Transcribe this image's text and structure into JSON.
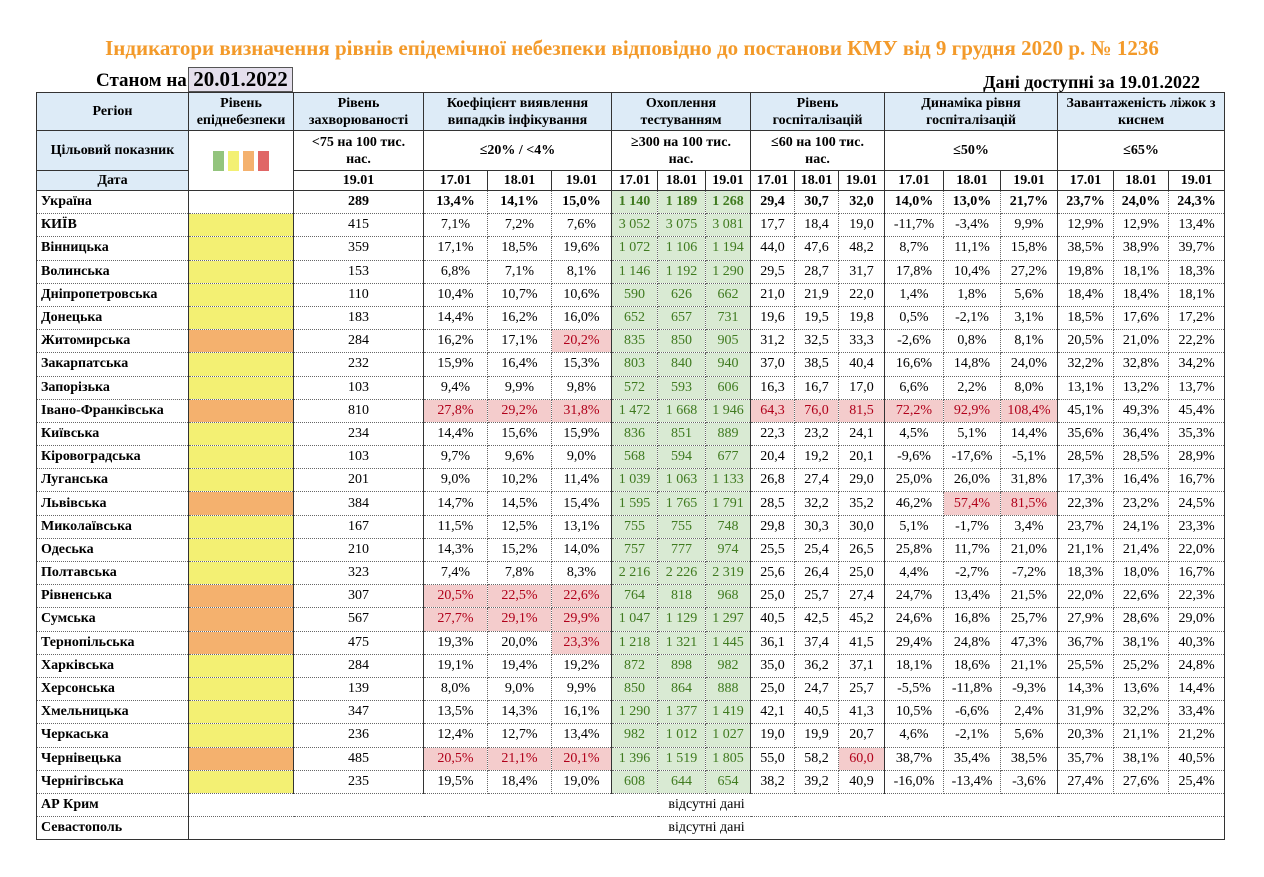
{
  "title": "Індикатори визначення рівнів епідемічної небезпеки відповідно до постанови КМУ від 9 грудня 2020 р. № 1236",
  "as_of_label": "Станом на",
  "as_of_date": "20.01.2022",
  "available_label": "Дані доступні за  19.01.2022",
  "colors": {
    "green": "#93C47D",
    "yellow": "#F3F073",
    "orange": "#F4B16E",
    "red": "#E06666"
  },
  "headers": {
    "region": "Регіон",
    "level": "Рівень епіднебезпеки",
    "incidence": "Рівень захворюваності",
    "coef": "Коефіцієнт виявлення випадків інфікування",
    "testing": "Охоплення тестуванням",
    "hosp": "Рівень госпіталізацій",
    "dyn": "Динаміка рівня госпіталізацій",
    "beds": "Завантаженість ліжок з киснем"
  },
  "targets": {
    "label": "Цільовий показник",
    "incidence": "<75 на 100 тис. нас.",
    "coef": "≤20% / <4%",
    "testing": "≥300 на 100 тис. нас.",
    "hosp": "≤60 на 100 тис. нас.",
    "dyn": "≤50%",
    "beds": "≤65%"
  },
  "date_label": "Дата",
  "incidence_date": "19.01",
  "dates": [
    "17.01",
    "18.01",
    "19.01"
  ],
  "rows": [
    {
      "name": "Україна",
      "level": "",
      "inc": "289",
      "coef": [
        "13,4%",
        "14,1%",
        "15,0%"
      ],
      "test": [
        "1 140",
        "1 189",
        "1 268"
      ],
      "hosp": [
        "29,4",
        "30,7",
        "32,0"
      ],
      "dyn": [
        "14,0%",
        "13,0%",
        "21,7%"
      ],
      "beds": [
        "23,7%",
        "24,0%",
        "24,3%"
      ]
    },
    {
      "name": "КИЇВ",
      "level": "yellow",
      "inc": "415",
      "coef": [
        "7,1%",
        "7,2%",
        "7,6%"
      ],
      "test": [
        "3 052",
        "3 075",
        "3 081"
      ],
      "hosp": [
        "17,7",
        "18,4",
        "19,0"
      ],
      "dyn": [
        "-11,7%",
        "-3,4%",
        "9,9%"
      ],
      "beds": [
        "12,9%",
        "12,9%",
        "13,4%"
      ]
    },
    {
      "name": "Вінницька",
      "level": "yellow",
      "inc": "359",
      "coef": [
        "17,1%",
        "18,5%",
        "19,6%"
      ],
      "test": [
        "1 072",
        "1 106",
        "1 194"
      ],
      "hosp": [
        "44,0",
        "47,6",
        "48,2"
      ],
      "dyn": [
        "8,7%",
        "11,1%",
        "15,8%"
      ],
      "beds": [
        "38,5%",
        "38,9%",
        "39,7%"
      ]
    },
    {
      "name": "Волинська",
      "level": "yellow",
      "inc": "153",
      "coef": [
        "6,8%",
        "7,1%",
        "8,1%"
      ],
      "test": [
        "1 146",
        "1 192",
        "1 290"
      ],
      "hosp": [
        "29,5",
        "28,7",
        "31,7"
      ],
      "dyn": [
        "17,8%",
        "10,4%",
        "27,2%"
      ],
      "beds": [
        "19,8%",
        "18,1%",
        "18,3%"
      ]
    },
    {
      "name": "Дніпропетровська",
      "level": "yellow",
      "inc": "110",
      "coef": [
        "10,4%",
        "10,7%",
        "10,6%"
      ],
      "test": [
        "590",
        "626",
        "662"
      ],
      "hosp": [
        "21,0",
        "21,9",
        "22,0"
      ],
      "dyn": [
        "1,4%",
        "1,8%",
        "5,6%"
      ],
      "beds": [
        "18,4%",
        "18,4%",
        "18,1%"
      ]
    },
    {
      "name": "Донецька",
      "level": "yellow",
      "inc": "183",
      "coef": [
        "14,4%",
        "16,2%",
        "16,0%"
      ],
      "test": [
        "652",
        "657",
        "731"
      ],
      "hosp": [
        "19,6",
        "19,5",
        "19,8"
      ],
      "dyn": [
        "0,5%",
        "-2,1%",
        "3,1%"
      ],
      "beds": [
        "18,5%",
        "17,6%",
        "17,2%"
      ]
    },
    {
      "name": "Житомирська",
      "level": "orange",
      "inc": "284",
      "coef": [
        "16,2%",
        "17,1%",
        "20,2%"
      ],
      "test": [
        "835",
        "850",
        "905"
      ],
      "hosp": [
        "31,2",
        "32,5",
        "33,3"
      ],
      "dyn": [
        "-2,6%",
        "0,8%",
        "8,1%"
      ],
      "beds": [
        "20,5%",
        "21,0%",
        "22,2%"
      ]
    },
    {
      "name": "Закарпатська",
      "level": "yellow",
      "inc": "232",
      "coef": [
        "15,9%",
        "16,4%",
        "15,3%"
      ],
      "test": [
        "803",
        "840",
        "940"
      ],
      "hosp": [
        "37,0",
        "38,5",
        "40,4"
      ],
      "dyn": [
        "16,6%",
        "14,8%",
        "24,0%"
      ],
      "beds": [
        "32,2%",
        "32,8%",
        "34,2%"
      ]
    },
    {
      "name": "Запорізька",
      "level": "yellow",
      "inc": "103",
      "coef": [
        "9,4%",
        "9,9%",
        "9,8%"
      ],
      "test": [
        "572",
        "593",
        "606"
      ],
      "hosp": [
        "16,3",
        "16,7",
        "17,0"
      ],
      "dyn": [
        "6,6%",
        "2,2%",
        "8,0%"
      ],
      "beds": [
        "13,1%",
        "13,2%",
        "13,7%"
      ]
    },
    {
      "name": "Івано-Франківська",
      "level": "orange",
      "inc": "810",
      "coef": [
        "27,8%",
        "29,2%",
        "31,8%"
      ],
      "test": [
        "1 472",
        "1 668",
        "1 946"
      ],
      "hosp": [
        "64,3",
        "76,0",
        "81,5"
      ],
      "dyn": [
        "72,2%",
        "92,9%",
        "108,4%"
      ],
      "beds": [
        "45,1%",
        "49,3%",
        "45,4%"
      ]
    },
    {
      "name": "Київська",
      "level": "yellow",
      "inc": "234",
      "coef": [
        "14,4%",
        "15,6%",
        "15,9%"
      ],
      "test": [
        "836",
        "851",
        "889"
      ],
      "hosp": [
        "22,3",
        "23,2",
        "24,1"
      ],
      "dyn": [
        "4,5%",
        "5,1%",
        "14,4%"
      ],
      "beds": [
        "35,6%",
        "36,4%",
        "35,3%"
      ]
    },
    {
      "name": "Кіровоградська",
      "level": "yellow",
      "inc": "103",
      "coef": [
        "9,7%",
        "9,6%",
        "9,0%"
      ],
      "test": [
        "568",
        "594",
        "677"
      ],
      "hosp": [
        "20,4",
        "19,2",
        "20,1"
      ],
      "dyn": [
        "-9,6%",
        "-17,6%",
        "-5,1%"
      ],
      "beds": [
        "28,5%",
        "28,5%",
        "28,9%"
      ]
    },
    {
      "name": "Луганська",
      "level": "yellow",
      "inc": "201",
      "coef": [
        "9,0%",
        "10,2%",
        "11,4%"
      ],
      "test": [
        "1 039",
        "1 063",
        "1 133"
      ],
      "hosp": [
        "26,8",
        "27,4",
        "29,0"
      ],
      "dyn": [
        "25,0%",
        "26,0%",
        "31,8%"
      ],
      "beds": [
        "17,3%",
        "16,4%",
        "16,7%"
      ]
    },
    {
      "name": "Львівська",
      "level": "orange",
      "inc": "384",
      "coef": [
        "14,7%",
        "14,5%",
        "15,4%"
      ],
      "test": [
        "1 595",
        "1 765",
        "1 791"
      ],
      "hosp": [
        "28,5",
        "32,2",
        "35,2"
      ],
      "dyn": [
        "46,2%",
        "57,4%",
        "81,5%"
      ],
      "beds": [
        "22,3%",
        "23,2%",
        "24,5%"
      ]
    },
    {
      "name": "Миколаївська",
      "level": "yellow",
      "inc": "167",
      "coef": [
        "11,5%",
        "12,5%",
        "13,1%"
      ],
      "test": [
        "755",
        "755",
        "748"
      ],
      "hosp": [
        "29,8",
        "30,3",
        "30,0"
      ],
      "dyn": [
        "5,1%",
        "-1,7%",
        "3,4%"
      ],
      "beds": [
        "23,7%",
        "24,1%",
        "23,3%"
      ]
    },
    {
      "name": "Одеська",
      "level": "yellow",
      "inc": "210",
      "coef": [
        "14,3%",
        "15,2%",
        "14,0%"
      ],
      "test": [
        "757",
        "777",
        "974"
      ],
      "hosp": [
        "25,5",
        "25,4",
        "26,5"
      ],
      "dyn": [
        "25,8%",
        "11,7%",
        "21,0%"
      ],
      "beds": [
        "21,1%",
        "21,4%",
        "22,0%"
      ]
    },
    {
      "name": "Полтавська",
      "level": "yellow",
      "inc": "323",
      "coef": [
        "7,4%",
        "7,8%",
        "8,3%"
      ],
      "test": [
        "2 216",
        "2 226",
        "2 319"
      ],
      "hosp": [
        "25,6",
        "26,4",
        "25,0"
      ],
      "dyn": [
        "4,4%",
        "-2,7%",
        "-7,2%"
      ],
      "beds": [
        "18,3%",
        "18,0%",
        "16,7%"
      ]
    },
    {
      "name": "Рівненська",
      "level": "orange",
      "inc": "307",
      "coef": [
        "20,5%",
        "22,5%",
        "22,6%"
      ],
      "test": [
        "764",
        "818",
        "968"
      ],
      "hosp": [
        "25,0",
        "25,7",
        "27,4"
      ],
      "dyn": [
        "24,7%",
        "13,4%",
        "21,5%"
      ],
      "beds": [
        "22,0%",
        "22,6%",
        "22,3%"
      ]
    },
    {
      "name": "Сумська",
      "level": "orange",
      "inc": "567",
      "coef": [
        "27,7%",
        "29,1%",
        "29,9%"
      ],
      "test": [
        "1 047",
        "1 129",
        "1 297"
      ],
      "hosp": [
        "40,5",
        "42,5",
        "45,2"
      ],
      "dyn": [
        "24,6%",
        "16,8%",
        "25,7%"
      ],
      "beds": [
        "27,9%",
        "28,6%",
        "29,0%"
      ]
    },
    {
      "name": "Тернопільська",
      "level": "orange",
      "inc": "475",
      "coef": [
        "19,3%",
        "20,0%",
        "23,3%"
      ],
      "test": [
        "1 218",
        "1 321",
        "1 445"
      ],
      "hosp": [
        "36,1",
        "37,4",
        "41,5"
      ],
      "dyn": [
        "29,4%",
        "24,8%",
        "47,3%"
      ],
      "beds": [
        "36,7%",
        "38,1%",
        "40,3%"
      ]
    },
    {
      "name": "Харківська",
      "level": "yellow",
      "inc": "284",
      "coef": [
        "19,1%",
        "19,4%",
        "19,2%"
      ],
      "test": [
        "872",
        "898",
        "982"
      ],
      "hosp": [
        "35,0",
        "36,2",
        "37,1"
      ],
      "dyn": [
        "18,1%",
        "18,6%",
        "21,1%"
      ],
      "beds": [
        "25,5%",
        "25,2%",
        "24,8%"
      ]
    },
    {
      "name": "Херсонська",
      "level": "yellow",
      "inc": "139",
      "coef": [
        "8,0%",
        "9,0%",
        "9,9%"
      ],
      "test": [
        "850",
        "864",
        "888"
      ],
      "hosp": [
        "25,0",
        "24,7",
        "25,7"
      ],
      "dyn": [
        "-5,5%",
        "-11,8%",
        "-9,3%"
      ],
      "beds": [
        "14,3%",
        "13,6%",
        "14,4%"
      ]
    },
    {
      "name": "Хмельницька",
      "level": "yellow",
      "inc": "347",
      "coef": [
        "13,5%",
        "14,3%",
        "16,1%"
      ],
      "test": [
        "1 290",
        "1 377",
        "1 419"
      ],
      "hosp": [
        "42,1",
        "40,5",
        "41,3"
      ],
      "dyn": [
        "10,5%",
        "-6,6%",
        "2,4%"
      ],
      "beds": [
        "31,9%",
        "32,2%",
        "33,4%"
      ]
    },
    {
      "name": "Черкаська",
      "level": "yellow",
      "inc": "236",
      "coef": [
        "12,4%",
        "12,7%",
        "13,4%"
      ],
      "test": [
        "982",
        "1 012",
        "1 027"
      ],
      "hosp": [
        "19,0",
        "19,9",
        "20,7"
      ],
      "dyn": [
        "4,6%",
        "-2,1%",
        "5,6%"
      ],
      "beds": [
        "20,3%",
        "21,1%",
        "21,2%"
      ]
    },
    {
      "name": "Чернівецька",
      "level": "orange",
      "inc": "485",
      "coef": [
        "20,5%",
        "21,1%",
        "20,1%"
      ],
      "test": [
        "1 396",
        "1 519",
        "1 805"
      ],
      "hosp": [
        "55,0",
        "58,2",
        "60,0"
      ],
      "dyn": [
        "38,7%",
        "35,4%",
        "38,5%"
      ],
      "beds": [
        "35,7%",
        "38,1%",
        "40,5%"
      ]
    },
    {
      "name": "Чернігівська",
      "level": "yellow",
      "inc": "235",
      "coef": [
        "19,5%",
        "18,4%",
        "19,0%"
      ],
      "test": [
        "608",
        "644",
        "654"
      ],
      "hosp": [
        "38,2",
        "39,2",
        "40,9"
      ],
      "dyn": [
        "-16,0%",
        "-13,4%",
        "-3,6%"
      ],
      "beds": [
        "27,4%",
        "27,6%",
        "25,4%"
      ]
    }
  ],
  "no_data_rows": [
    {
      "name": "АР Крим",
      "text": "відсутні дані"
    },
    {
      "name": "Севастополь",
      "text": "відсутні дані"
    }
  ]
}
